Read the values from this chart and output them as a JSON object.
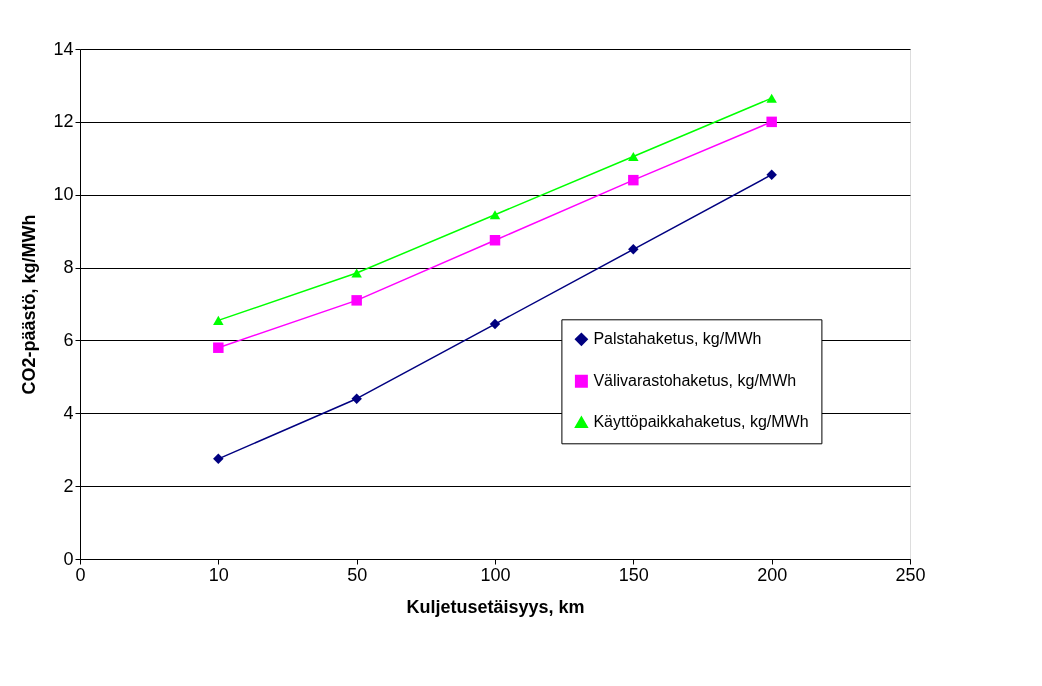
{
  "chart_data": {
    "type": "line",
    "xlabel": "Kuljetusetäisyys, km",
    "ylabel": "CO2-päästö, kg/MWh",
    "categories": [
      "0",
      "10",
      "50",
      "100",
      "150",
      "200",
      "250"
    ],
    "series": [
      {
        "name": "Palstahaketus, kg/MWh",
        "color": "#000080",
        "marker": "diamond",
        "values": [
          null,
          2.75,
          4.4,
          6.45,
          8.5,
          10.55,
          null
        ]
      },
      {
        "name": "Välivarastohaketus, kg/MWh",
        "color": "#ff00ff",
        "marker": "square",
        "values": [
          null,
          5.8,
          7.1,
          8.75,
          10.4,
          12.0,
          null
        ]
      },
      {
        "name": "Käyttöpaikkahaketus, kg/MWh",
        "color": "#00ff00",
        "marker": "triangle",
        "values": [
          null,
          6.55,
          7.85,
          9.45,
          11.05,
          12.65,
          null
        ]
      }
    ],
    "ylim": [
      0,
      14
    ],
    "yticks": [
      0,
      2,
      4,
      6,
      8,
      10,
      12,
      14
    ],
    "grid": "y",
    "legend": "bottom right",
    "line_style": "solid"
  }
}
